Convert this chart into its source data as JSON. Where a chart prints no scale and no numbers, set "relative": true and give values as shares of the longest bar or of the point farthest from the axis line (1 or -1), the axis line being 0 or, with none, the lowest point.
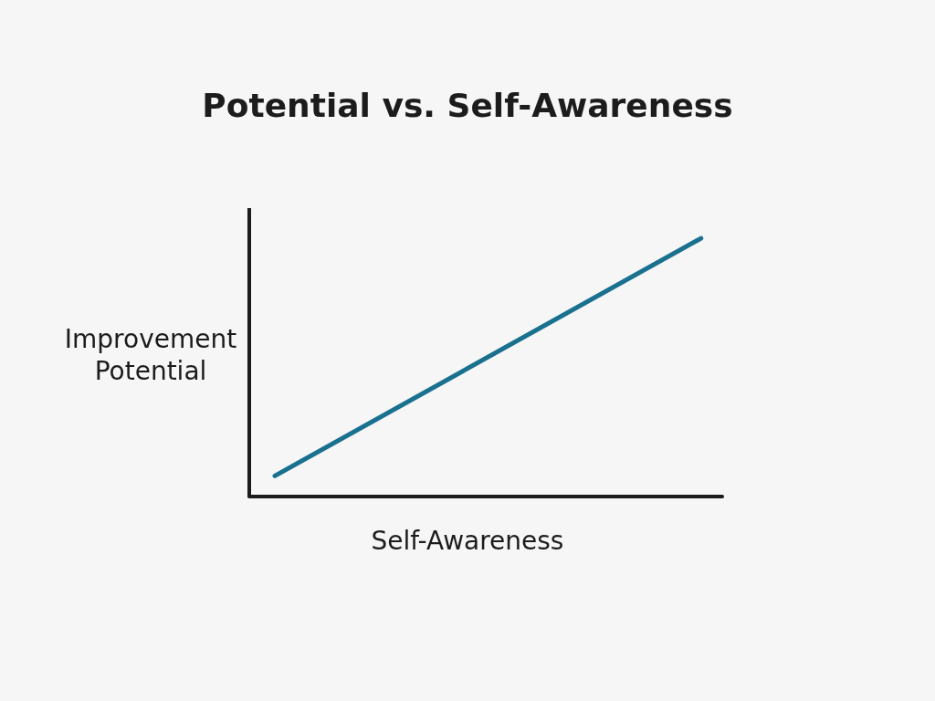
{
  "chart_data": {
    "type": "line",
    "title": "Potential vs. Self-Awareness",
    "xlabel": "Self-Awareness",
    "ylabel": "Improvement Potential",
    "categories": [
      null,
      null
    ],
    "values": [
      0.08,
      1
    ],
    "color": "#19708f",
    "relative": true,
    "tick_labels": false,
    "marker": "none",
    "line_style": "solid"
  }
}
